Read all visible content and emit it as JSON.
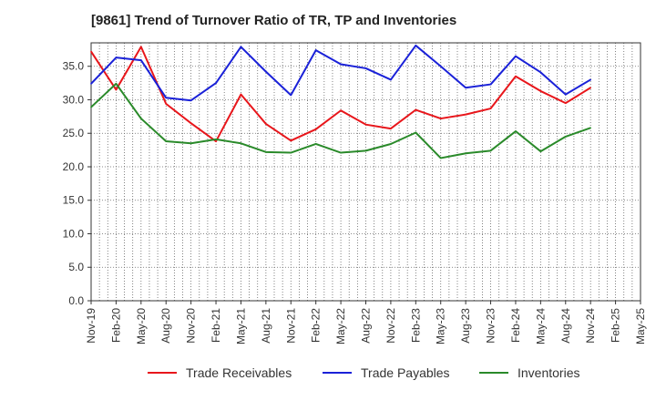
{
  "chart_data": {
    "type": "line",
    "title": "[9861]  Trend of Turnover Ratio of TR, TP and Inventories",
    "xlabel": "",
    "ylabel": "",
    "ylim": [
      0,
      38.5
    ],
    "yticks": [
      "0.0",
      "5.0",
      "10.0",
      "15.0",
      "20.0",
      "25.0",
      "30.0",
      "35.0"
    ],
    "x_tick_labels": [
      "Nov-19",
      "Feb-20",
      "May-20",
      "Aug-20",
      "Nov-20",
      "Feb-21",
      "May-21",
      "Aug-21",
      "Nov-21",
      "Feb-22",
      "May-22",
      "Aug-22",
      "Nov-22",
      "Feb-23",
      "May-23",
      "Aug-23",
      "Nov-23",
      "Feb-24",
      "May-24",
      "Aug-24",
      "Nov-24",
      "Feb-25",
      "May-25"
    ],
    "x_points": [
      "Nov-19",
      "Feb-20",
      "May-20",
      "Aug-20",
      "Nov-20",
      "Feb-21",
      "May-21",
      "Aug-21",
      "Nov-21",
      "Feb-22",
      "May-22",
      "Aug-22",
      "Nov-22",
      "Feb-23",
      "May-23",
      "Aug-23",
      "Nov-23",
      "Feb-24",
      "May-24",
      "Aug-24",
      "Nov-24"
    ],
    "grid": true,
    "legend_position": "bottom",
    "series": [
      {
        "name": "Trade Receivables",
        "color": "#e8161b",
        "values": [
          37.2,
          31.5,
          37.9,
          29.4,
          26.5,
          23.8,
          30.8,
          26.4,
          23.9,
          25.6,
          28.4,
          26.3,
          25.7,
          28.5,
          27.2,
          27.8,
          28.7,
          33.5,
          31.3,
          29.5,
          31.8
        ]
      },
      {
        "name": "Trade Payables",
        "color": "#1a21d8",
        "values": [
          32.4,
          36.3,
          35.9,
          30.3,
          29.9,
          32.5,
          37.9,
          34.2,
          30.7,
          37.4,
          35.3,
          34.7,
          33.0,
          38.1,
          35.0,
          31.8,
          32.3,
          36.5,
          34.1,
          30.8,
          33.0
        ]
      },
      {
        "name": "Inventories",
        "color": "#2a8a2a",
        "values": [
          28.9,
          32.4,
          27.2,
          23.8,
          23.5,
          24.1,
          23.5,
          22.2,
          22.1,
          23.4,
          22.1,
          22.4,
          23.4,
          25.1,
          21.3,
          22.0,
          22.4,
          25.3,
          22.3,
          24.5,
          25.8
        ]
      }
    ]
  }
}
